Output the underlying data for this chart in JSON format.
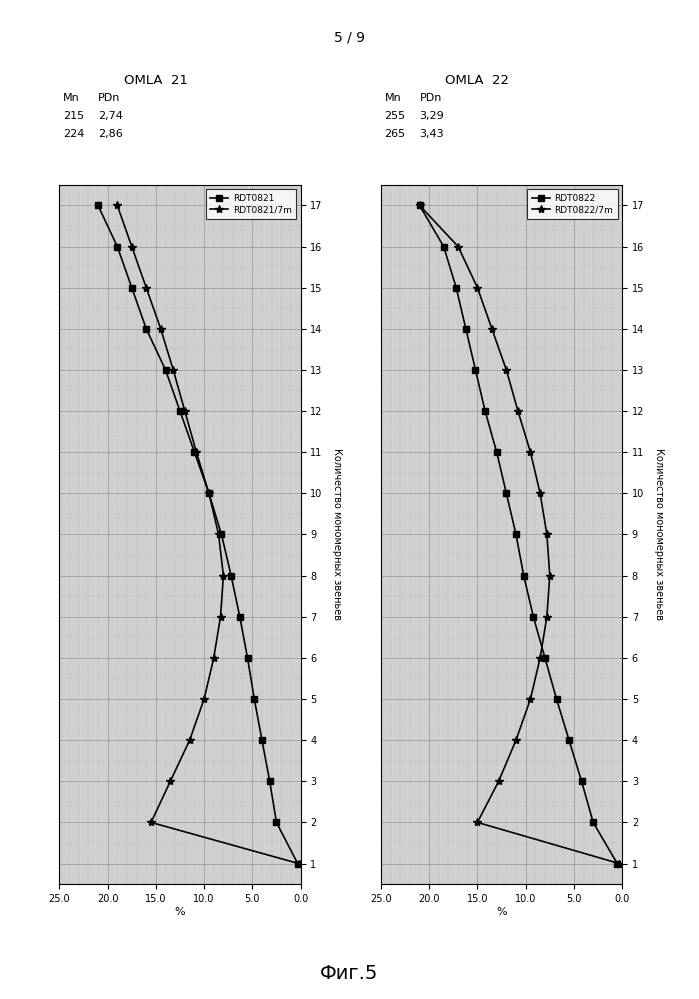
{
  "page_label": "5 / 9",
  "figure_label": "Фиг.5",
  "omla21_title": "OMLA  21",
  "omla22_title": "OMLA  22",
  "omla21_mn": [
    "215",
    "224"
  ],
  "omla21_pdn": [
    "2,74",
    "2,86"
  ],
  "omla22_mn": [
    "255",
    "265"
  ],
  "omla22_pdn": [
    "3,29",
    "3,43"
  ],
  "omla21_legend": [
    "RDT0821",
    "RDT0821/7m"
  ],
  "omla22_legend": [
    "RDT0822",
    "RDT0822/7m"
  ],
  "ylabel_pct": "%",
  "xlabel_chain": "Количество мономерных звеньев",
  "pct_ticks": [
    0.0,
    5.0,
    10.0,
    15.0,
    20.0,
    25.0
  ],
  "chain_ticks": [
    1,
    2,
    3,
    4,
    5,
    6,
    7,
    8,
    9,
    10,
    11,
    12,
    13,
    14,
    15,
    16,
    17
  ],
  "omla21_s1_chain": [
    1,
    2,
    3,
    4,
    5,
    6,
    7,
    8,
    9,
    10,
    11,
    12,
    13,
    14,
    15,
    16,
    17
  ],
  "omla21_s1_pct": [
    0.3,
    2.5,
    3.2,
    4.0,
    4.8,
    5.5,
    6.3,
    7.2,
    8.2,
    9.5,
    11.0,
    12.5,
    14.0,
    16.0,
    17.5,
    19.0,
    21.0
  ],
  "omla21_s2_chain": [
    1,
    2,
    3,
    4,
    5,
    6,
    7,
    8,
    9,
    10,
    11,
    12,
    13,
    14,
    15,
    16,
    17
  ],
  "omla21_s2_pct": [
    0.2,
    15.5,
    13.5,
    11.5,
    10.0,
    9.0,
    8.3,
    8.0,
    8.5,
    9.5,
    10.8,
    12.0,
    13.2,
    14.5,
    16.0,
    17.5,
    19.0
  ],
  "omla22_s1_chain": [
    1,
    2,
    3,
    4,
    5,
    6,
    7,
    8,
    9,
    10,
    11,
    12,
    13,
    14,
    15,
    16,
    17
  ],
  "omla22_s1_pct": [
    0.5,
    3.0,
    4.2,
    5.5,
    6.8,
    8.0,
    9.2,
    10.2,
    11.0,
    12.0,
    13.0,
    14.2,
    15.2,
    16.2,
    17.2,
    18.5,
    21.0
  ],
  "omla22_s2_chain": [
    1,
    2,
    3,
    4,
    5,
    6,
    7,
    8,
    9,
    10,
    11,
    12,
    13,
    14,
    15,
    16,
    17
  ],
  "omla22_s2_pct": [
    0.3,
    15.0,
    12.8,
    11.0,
    9.5,
    8.5,
    7.8,
    7.5,
    7.8,
    8.5,
    9.5,
    10.8,
    12.0,
    13.5,
    15.0,
    17.0,
    21.0
  ],
  "bg_color": "#ffffff",
  "plot_bg": "#d0d0d0"
}
